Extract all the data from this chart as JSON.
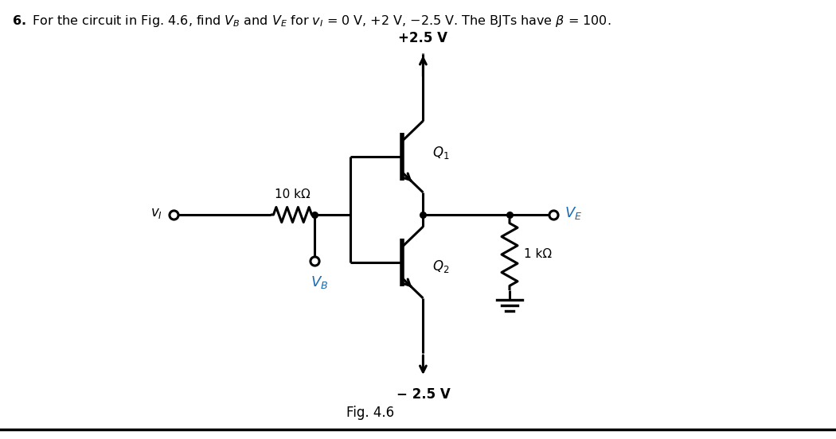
{
  "fig_label": "Fig. 4.6",
  "plus_supply": "+2.5 V",
  "minus_supply": "− 2.5 V",
  "r_label": "10 kΩ",
  "r2_label": "1 kΩ",
  "bg_color": "#ffffff",
  "line_color": "#000000",
  "blue_color": "#1a6bb5",
  "lw": 2.2,
  "title": "6.",
  "title_rest": " For the circuit in Fig. 4.6, find ",
  "vb_color": "#1a6bb5",
  "ve_color": "#1a6bb5"
}
